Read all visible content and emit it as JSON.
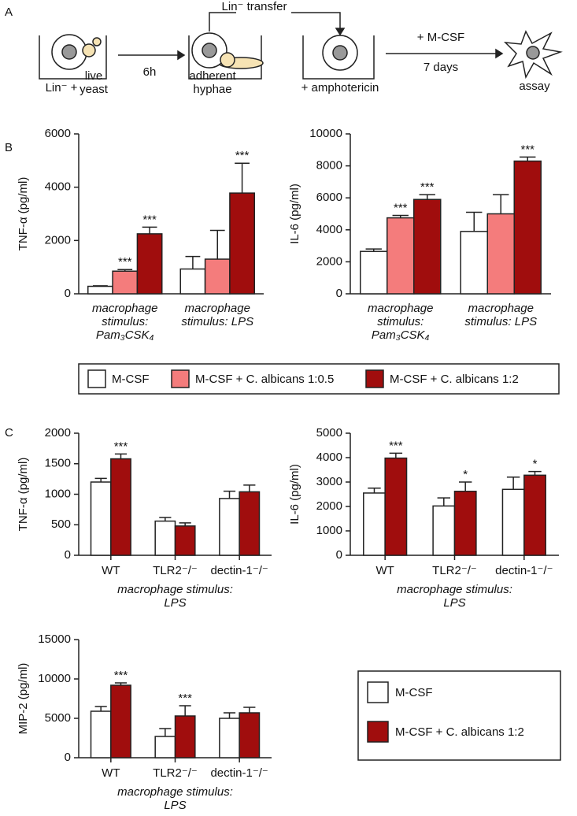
{
  "panels": {
    "a": "A",
    "b": "B",
    "c": "C"
  },
  "diagram": {
    "lin_plus": "Lin⁻ +",
    "live_yeast": "live yeast",
    "step1": "6h",
    "adherent_hyphae": "adherent hyphae",
    "transfer": "Lin⁻ transfer",
    "amphotericin": "+ amphotericin",
    "mcsf": "+ M-CSF",
    "days": "7 days",
    "assay": "assay"
  },
  "chart_data": [
    {
      "type": "bar",
      "ylabel": "TNF-α (pg/ml)",
      "categories": [
        "macrophage stimulus: Pam₃CSK₄",
        "macrophage stimulus: LPS"
      ],
      "ylim": [
        0,
        6000
      ],
      "yticks": [
        0,
        2000,
        4000,
        6000
      ],
      "series": [
        {
          "name": "M-CSF",
          "color": "#ffffff",
          "values": [
            280,
            930
          ],
          "errors": [
            20,
            470
          ],
          "annotations": [
            null,
            null
          ]
        },
        {
          "name": "M-CSF + C. albicans 1:0.5",
          "color": "#f47c7c",
          "values": [
            850,
            1300
          ],
          "errors": [
            60,
            1080
          ],
          "annotations": [
            "***",
            null
          ]
        },
        {
          "name": "M-CSF + C. albicans 1:2",
          "color": "#a00d0d",
          "values": [
            2250,
            3780
          ],
          "errors": [
            250,
            1120
          ],
          "annotations": [
            "***",
            "***"
          ]
        }
      ]
    },
    {
      "type": "bar",
      "ylabel": "IL-6 (pg/ml)",
      "categories": [
        "macrophage stimulus: Pam₃CSK₄",
        "macrophage stimulus: LPS"
      ],
      "ylim": [
        0,
        10000
      ],
      "yticks": [
        0,
        2000,
        4000,
        6000,
        8000,
        10000
      ],
      "series": [
        {
          "name": "M-CSF",
          "color": "#ffffff",
          "values": [
            2650,
            3900
          ],
          "errors": [
            150,
            1200
          ],
          "annotations": [
            null,
            null
          ]
        },
        {
          "name": "M-CSF + C. albicans 1:0.5",
          "color": "#f47c7c",
          "values": [
            4750,
            5000
          ],
          "errors": [
            150,
            1200
          ],
          "annotations": [
            "***",
            null
          ]
        },
        {
          "name": "M-CSF + C. albicans 1:2",
          "color": "#a00d0d",
          "values": [
            5900,
            8300
          ],
          "errors": [
            300,
            250
          ],
          "annotations": [
            "***",
            "***"
          ]
        }
      ]
    },
    {
      "type": "bar",
      "ylabel": "TNF-α (pg/ml)",
      "xlabel": "macrophage stimulus: LPS",
      "categories": [
        "WT",
        "TLR2⁻/⁻",
        "dectin-1⁻/⁻"
      ],
      "ylim": [
        0,
        2000
      ],
      "yticks": [
        0,
        500,
        1000,
        1500,
        2000
      ],
      "series": [
        {
          "name": "M-CSF",
          "color": "#ffffff",
          "values": [
            1200,
            560,
            930
          ],
          "errors": [
            60,
            60,
            120
          ],
          "annotations": [
            null,
            null,
            null
          ]
        },
        {
          "name": "M-CSF + C. albicans 1:2",
          "color": "#a00d0d",
          "values": [
            1580,
            480,
            1040
          ],
          "errors": [
            80,
            50,
            110
          ],
          "annotations": [
            "***",
            null,
            null
          ]
        }
      ]
    },
    {
      "type": "bar",
      "ylabel": "IL-6 (pg/ml)",
      "xlabel": "macrophage stimulus: LPS",
      "categories": [
        "WT",
        "TLR2⁻/⁻",
        "dectin-1⁻/⁻"
      ],
      "ylim": [
        0,
        5000
      ],
      "yticks": [
        0,
        1000,
        2000,
        3000,
        4000,
        5000
      ],
      "series": [
        {
          "name": "M-CSF",
          "color": "#ffffff",
          "values": [
            2550,
            2020,
            2700
          ],
          "errors": [
            200,
            330,
            500
          ],
          "annotations": [
            null,
            null,
            null
          ]
        },
        {
          "name": "M-CSF + C. albicans 1:2",
          "color": "#a00d0d",
          "values": [
            3980,
            2620,
            3280
          ],
          "errors": [
            200,
            380,
            150
          ],
          "annotations": [
            "***",
            "*",
            "*"
          ]
        }
      ]
    },
    {
      "type": "bar",
      "ylabel": "MIP-2 (pg/ml)",
      "xlabel": "macrophage stimulus: LPS",
      "categories": [
        "WT",
        "TLR2⁻/⁻",
        "dectin-1⁻/⁻"
      ],
      "ylim": [
        0,
        15000
      ],
      "yticks": [
        0,
        5000,
        10000,
        15000
      ],
      "series": [
        {
          "name": "M-CSF",
          "color": "#ffffff",
          "values": [
            5900,
            2700,
            5000
          ],
          "errors": [
            600,
            1000,
            700
          ],
          "annotations": [
            null,
            null,
            null
          ]
        },
        {
          "name": "M-CSF + C. albicans 1:2",
          "color": "#a00d0d",
          "values": [
            9200,
            5300,
            5700
          ],
          "errors": [
            300,
            1300,
            700
          ],
          "annotations": [
            "***",
            "***",
            null
          ]
        }
      ]
    }
  ]
}
